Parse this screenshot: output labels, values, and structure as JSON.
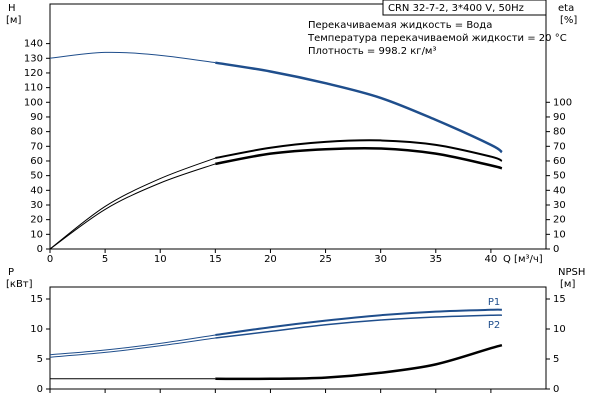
{
  "chart_data": [
    {
      "type": "line",
      "y_label": "H",
      "y_unit": "[м]",
      "y2_label": "eta",
      "y2_unit": "[%]",
      "xlabel": "Q [м³/ч]",
      "annotations": [
        "CRN 32-7-2, 3*400 V, 50Hz",
        "Перекачиваемая жидкость = Вода",
        "Температура перекачиваемой жидкости = 20 °C",
        "Плотность = 998.2 кг/м³"
      ],
      "x": [
        0,
        5,
        10,
        15,
        20,
        25,
        30,
        35,
        40,
        41
      ],
      "xlim": [
        0,
        45
      ],
      "xticks": [
        0,
        5,
        10,
        15,
        20,
        25,
        30,
        35,
        40
      ],
      "ylim": [
        0,
        167
      ],
      "yticks": [
        0,
        10,
        20,
        30,
        40,
        50,
        60,
        70,
        80,
        90,
        100,
        110,
        120,
        130,
        140
      ],
      "y2lim": [
        0,
        167
      ],
      "y2ticks": [
        0,
        10,
        20,
        30,
        40,
        50,
        60,
        70,
        80,
        90,
        100
      ],
      "show_xtick_labels": true,
      "series": [
        {
          "color": "#1f4e8c",
          "linewidth": 1,
          "values": [
            130,
            134,
            132,
            127,
            null,
            null,
            null,
            null,
            null,
            null
          ]
        },
        {
          "color": "#1f4e8c",
          "linewidth": 2.5,
          "values": [
            null,
            null,
            null,
            127,
            121,
            113,
            103,
            88,
            71,
            66
          ]
        },
        {
          "color": "#000000",
          "linewidth": 1,
          "axis": "y2",
          "values": [
            0,
            29,
            48,
            62,
            null,
            null,
            null,
            null,
            null,
            null
          ]
        },
        {
          "color": "#000000",
          "linewidth": 2,
          "axis": "y2",
          "values": [
            null,
            null,
            null,
            62,
            69,
            73,
            74,
            71,
            63,
            60
          ]
        },
        {
          "color": "#000000",
          "linewidth": 1,
          "axis": "y2",
          "values": [
            0,
            27,
            45,
            58,
            null,
            null,
            null,
            null,
            null,
            null
          ]
        },
        {
          "color": "#000000",
          "linewidth": 2.5,
          "axis": "y2",
          "values": [
            null,
            null,
            null,
            58,
            65,
            68,
            68.5,
            65,
            57,
            55
          ]
        }
      ]
    },
    {
      "type": "line",
      "y_label": "P",
      "y_unit": "[кВт]",
      "y2_label": "NPSH",
      "y2_unit": "[м]",
      "x": [
        0,
        5,
        10,
        15,
        20,
        25,
        30,
        35,
        40,
        41
      ],
      "xlim": [
        0,
        45
      ],
      "xticks": [
        0,
        5,
        10,
        15,
        20,
        25,
        30,
        35,
        40
      ],
      "ylim": [
        0,
        17
      ],
      "yticks": [
        0,
        5,
        10,
        15
      ],
      "y2lim": [
        0,
        17
      ],
      "y2ticks": [
        0,
        5,
        10,
        15
      ],
      "show_xtick_labels": false,
      "series": [
        {
          "color": "#1f4e8c",
          "linewidth": 1,
          "values": [
            5.7,
            6.5,
            7.6,
            9.0,
            null,
            null,
            null,
            null,
            null,
            null
          ]
        },
        {
          "name": "P1",
          "color": "#1f4e8c",
          "linewidth": 2,
          "values": [
            null,
            null,
            null,
            9.0,
            10.3,
            11.4,
            12.3,
            12.9,
            13.2,
            13.2
          ]
        },
        {
          "color": "#1f4e8c",
          "linewidth": 1,
          "values": [
            5.3,
            6.1,
            7.2,
            8.5,
            null,
            null,
            null,
            null,
            null,
            null
          ]
        },
        {
          "name": "P2",
          "color": "#1f4e8c",
          "linewidth": 1.5,
          "values": [
            null,
            null,
            null,
            8.5,
            9.6,
            10.7,
            11.5,
            12.0,
            12.3,
            12.3
          ]
        },
        {
          "color": "#000000",
          "linewidth": 1,
          "axis": "y2",
          "values": [
            1.7,
            1.7,
            1.7,
            1.7,
            null,
            null,
            null,
            null,
            null,
            null
          ]
        },
        {
          "color": "#000000",
          "linewidth": 2.5,
          "axis": "y2",
          "values": [
            null,
            null,
            null,
            1.7,
            1.7,
            1.9,
            2.7,
            4.1,
            6.8,
            7.3
          ]
        }
      ]
    }
  ]
}
